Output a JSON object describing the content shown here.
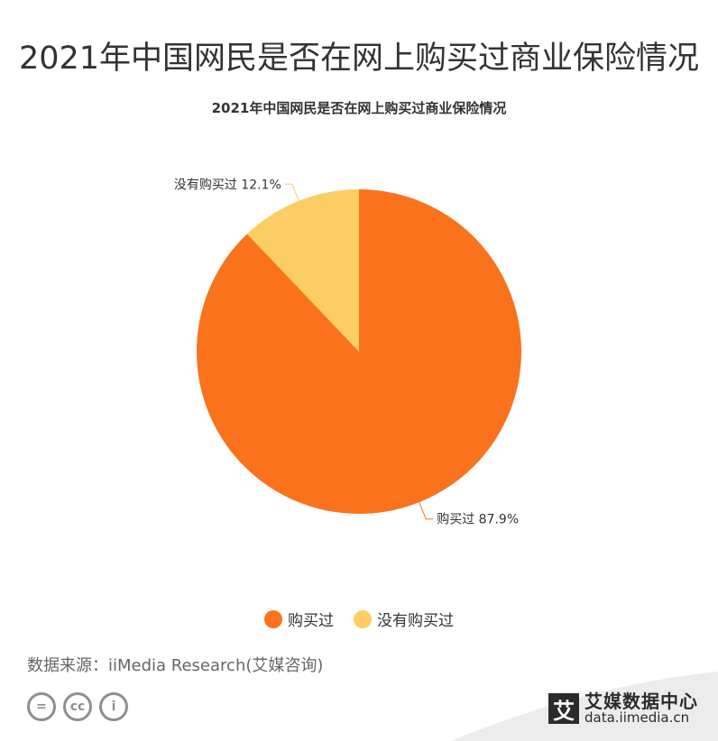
{
  "page_title": "2021年中国网民是否在网上购买过商业保险情况",
  "source": "数据来源：iiMedia Research(艾媒咨询)",
  "brand": {
    "logo": "艾",
    "name": "艾媒数据中心",
    "url": "data.iimedia.cn"
  },
  "cc_icons": [
    {
      "name": "cc-equal-icon",
      "glyph": "="
    },
    {
      "name": "cc-icon",
      "glyph": "cc"
    },
    {
      "name": "cc-person-icon",
      "glyph": "i"
    }
  ],
  "chart_data": {
    "type": "pie",
    "title": "2021年中国网民是否在网上购买过商业保险情况",
    "unit": "%",
    "legend_position": "bottom",
    "slices": [
      {
        "name": "购买过",
        "value": 87.9,
        "color": "#fa721c",
        "label": "购买过 87.9%"
      },
      {
        "name": "没有购买过",
        "value": 12.1,
        "color": "#fdcd65",
        "label": "没有购买过 12.1%"
      }
    ]
  }
}
